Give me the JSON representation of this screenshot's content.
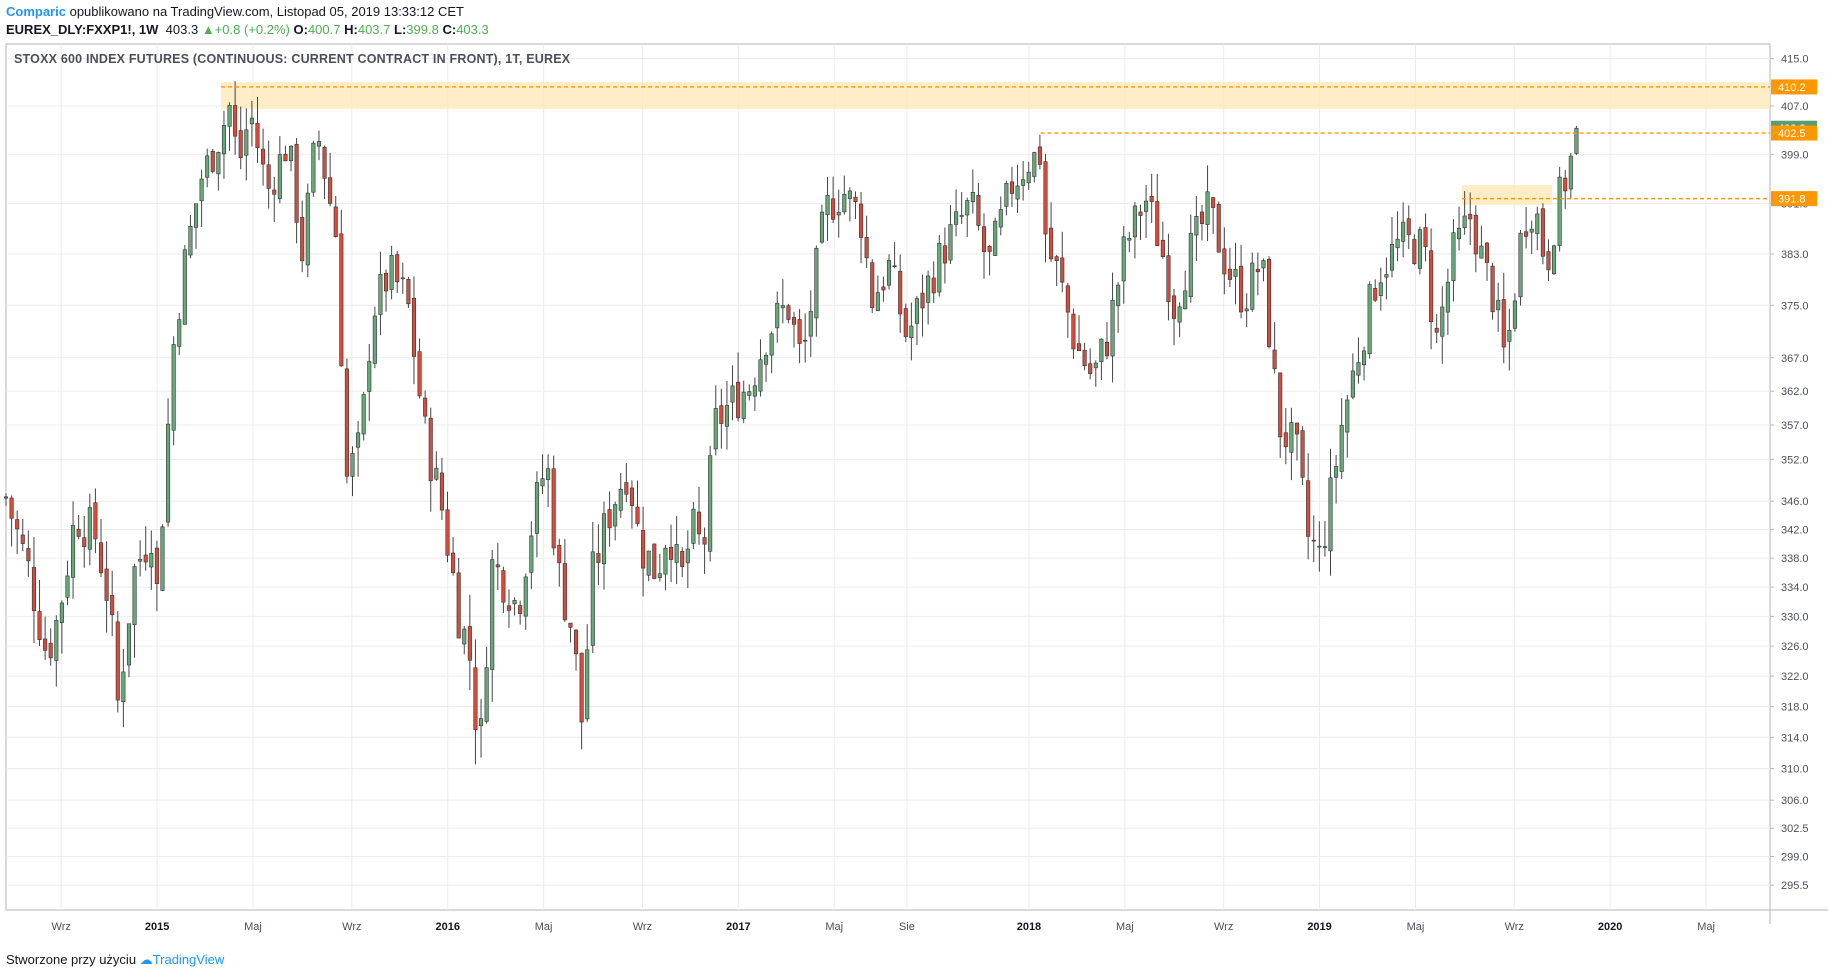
{
  "header": {
    "author": "Comparic",
    "published_text": "opublikowano na TradingView.com, Listopad 05, 2019 13:33:12 CET",
    "symbol": "EUREX_DLY:FXXP1!, 1W",
    "last": "403.3",
    "change": "+0.8 (+0.2%)",
    "open_label": "O:",
    "open": "400.7",
    "high_label": "H:",
    "high": "403.7",
    "low_label": "L:",
    "low": "399.8",
    "close_label": "C:",
    "close": "403.3"
  },
  "pane_title": "STOXX 600 INDEX FUTURES (CONTINUOUS: CURRENT CONTRACT IN FRONT), 1T, EUREX",
  "footer": {
    "created_text": "Stworzone przy użyciu",
    "brand": "TradingView"
  },
  "colors": {
    "up": "#4caf50",
    "down": "#ef5350",
    "upFill": "#66a877",
    "downFill": "#d84b3c",
    "orange": "#ff9800",
    "zone": "#ffe9b8",
    "grid": "#ececec"
  },
  "chart_data": {
    "type": "candlestick",
    "y_scale": "log",
    "ylim": [
      292.5,
      417.5
    ],
    "y_ticks": [
      "415.0",
      "407.0",
      "399.0",
      "391.0",
      "383.0",
      "375.0",
      "367.0",
      "362.0",
      "357.0",
      "352.0",
      "346.0",
      "342.0",
      "338.0",
      "334.0",
      "330.0",
      "326.0",
      "322.0",
      "318.0",
      "314.0",
      "310.0",
      "306.0",
      "302.5",
      "299.0",
      "295.5"
    ],
    "x_ticks": [
      {
        "label": "Wrz",
        "x": 2014.67,
        "year": false
      },
      {
        "label": "2015",
        "x": 2015.0,
        "year": true
      },
      {
        "label": "Maj",
        "x": 2015.33,
        "year": false
      },
      {
        "label": "Wrz",
        "x": 2015.67,
        "year": false
      },
      {
        "label": "2016",
        "x": 2016.0,
        "year": true
      },
      {
        "label": "Maj",
        "x": 2016.33,
        "year": false
      },
      {
        "label": "Wrz",
        "x": 2016.67,
        "year": false
      },
      {
        "label": "2017",
        "x": 2017.0,
        "year": true
      },
      {
        "label": "Maj",
        "x": 2017.33,
        "year": false
      },
      {
        "label": "Sie",
        "x": 2017.58,
        "year": false
      },
      {
        "label": "2018",
        "x": 2018.0,
        "year": true
      },
      {
        "label": "Maj",
        "x": 2018.33,
        "year": false
      },
      {
        "label": "Wrz",
        "x": 2018.67,
        "year": false
      },
      {
        "label": "2019",
        "x": 2019.0,
        "year": true
      },
      {
        "label": "Maj",
        "x": 2019.33,
        "year": false
      },
      {
        "label": "Wrz",
        "x": 2019.67,
        "year": false
      },
      {
        "label": "2020",
        "x": 2020.0,
        "year": true
      },
      {
        "label": "Maj",
        "x": 2020.33,
        "year": false
      }
    ],
    "xlim": [
      2014.48,
      2020.55
    ],
    "price_tags": [
      {
        "label": "410.2",
        "value": 410.2,
        "color": "#ff9800"
      },
      {
        "label": "403.3",
        "value": 403.3,
        "color": "#5b9c6e"
      },
      {
        "label": "402.5",
        "value": 402.5,
        "color": "#ff9800"
      },
      {
        "label": "391.8",
        "value": 391.8,
        "color": "#ff9800"
      }
    ],
    "resistance_zones": [
      {
        "x0": 2015.22,
        "x1": 2020.57,
        "y_low": 406.5,
        "y_high": 411.0
      },
      {
        "x0": 2019.49,
        "x1": 2019.8,
        "y_low": 390.8,
        "y_high": 394.0
      }
    ],
    "dashed_levels": [
      {
        "x0": 2015.22,
        "value": 410.2
      },
      {
        "x0": 2018.04,
        "value": 402.5
      },
      {
        "x0": 2019.49,
        "value": 391.8
      }
    ],
    "anchors": [
      [
        2014.48,
        346.5
      ],
      [
        2014.56,
        336
      ],
      [
        2014.62,
        325
      ],
      [
        2014.66,
        330
      ],
      [
        2014.72,
        344
      ],
      [
        2014.79,
        341
      ],
      [
        2014.84,
        331
      ],
      [
        2014.86,
        317
      ],
      [
        2014.92,
        336
      ],
      [
        2014.98,
        342
      ],
      [
        2015.0,
        333
      ],
      [
        2015.03,
        352
      ],
      [
        2015.06,
        371
      ],
      [
        2015.1,
        383
      ],
      [
        2015.15,
        395
      ],
      [
        2015.2,
        400
      ],
      [
        2015.25,
        407
      ],
      [
        2015.28,
        397
      ],
      [
        2015.32,
        406
      ],
      [
        2015.38,
        393
      ],
      [
        2015.45,
        401
      ],
      [
        2015.5,
        383
      ],
      [
        2015.55,
        403
      ],
      [
        2015.62,
        385
      ],
      [
        2015.65,
        349
      ],
      [
        2015.7,
        354
      ],
      [
        2015.74,
        374
      ],
      [
        2015.8,
        380
      ],
      [
        2015.86,
        376
      ],
      [
        2015.92,
        356
      ],
      [
        2015.98,
        345
      ],
      [
        2016.04,
        330
      ],
      [
        2016.08,
        324
      ],
      [
        2016.11,
        311
      ],
      [
        2016.15,
        337
      ],
      [
        2016.2,
        335
      ],
      [
        2016.24,
        331
      ],
      [
        2016.28,
        341
      ],
      [
        2016.34,
        352
      ],
      [
        2016.38,
        336
      ],
      [
        2016.43,
        328
      ],
      [
        2016.46,
        316
      ],
      [
        2016.5,
        336
      ],
      [
        2016.56,
        345
      ],
      [
        2016.62,
        351
      ],
      [
        2016.66,
        340
      ],
      [
        2016.72,
        336
      ],
      [
        2016.76,
        343
      ],
      [
        2016.8,
        334
      ],
      [
        2016.84,
        342
      ],
      [
        2016.88,
        339
      ],
      [
        2016.92,
        357
      ],
      [
        2016.97,
        360
      ],
      [
        2017.04,
        363
      ],
      [
        2017.1,
        371
      ],
      [
        2017.17,
        375
      ],
      [
        2017.22,
        366
      ],
      [
        2017.26,
        378
      ],
      [
        2017.3,
        390
      ],
      [
        2017.36,
        393
      ],
      [
        2017.42,
        389
      ],
      [
        2017.46,
        376
      ],
      [
        2017.52,
        381
      ],
      [
        2017.58,
        370
      ],
      [
        2017.65,
        378
      ],
      [
        2017.72,
        385
      ],
      [
        2017.8,
        391
      ],
      [
        2017.86,
        381
      ],
      [
        2017.94,
        394
      ],
      [
        2018.0,
        398
      ],
      [
        2018.04,
        399
      ],
      [
        2018.06,
        384
      ],
      [
        2018.1,
        380
      ],
      [
        2018.16,
        369
      ],
      [
        2018.22,
        364
      ],
      [
        2018.27,
        370
      ],
      [
        2018.33,
        384
      ],
      [
        2018.4,
        392
      ],
      [
        2018.45,
        385
      ],
      [
        2018.5,
        375
      ],
      [
        2018.56,
        384
      ],
      [
        2018.62,
        390
      ],
      [
        2018.68,
        381
      ],
      [
        2018.74,
        376
      ],
      [
        2018.8,
        382
      ],
      [
        2018.86,
        357
      ],
      [
        2018.92,
        353
      ],
      [
        2018.96,
        341
      ],
      [
        2019.0,
        338
      ],
      [
        2019.04,
        347
      ],
      [
        2019.08,
        358
      ],
      [
        2019.14,
        369
      ],
      [
        2019.2,
        380
      ],
      [
        2019.28,
        385
      ],
      [
        2019.36,
        384
      ],
      [
        2019.4,
        369
      ],
      [
        2019.46,
        383
      ],
      [
        2019.52,
        389
      ],
      [
        2019.56,
        382
      ],
      [
        2019.6,
        376
      ],
      [
        2019.64,
        366
      ],
      [
        2019.7,
        388
      ],
      [
        2019.74,
        391
      ],
      [
        2019.78,
        381
      ],
      [
        2019.82,
        391
      ],
      [
        2019.86,
        397
      ],
      [
        2019.89,
        403.3
      ]
    ]
  }
}
